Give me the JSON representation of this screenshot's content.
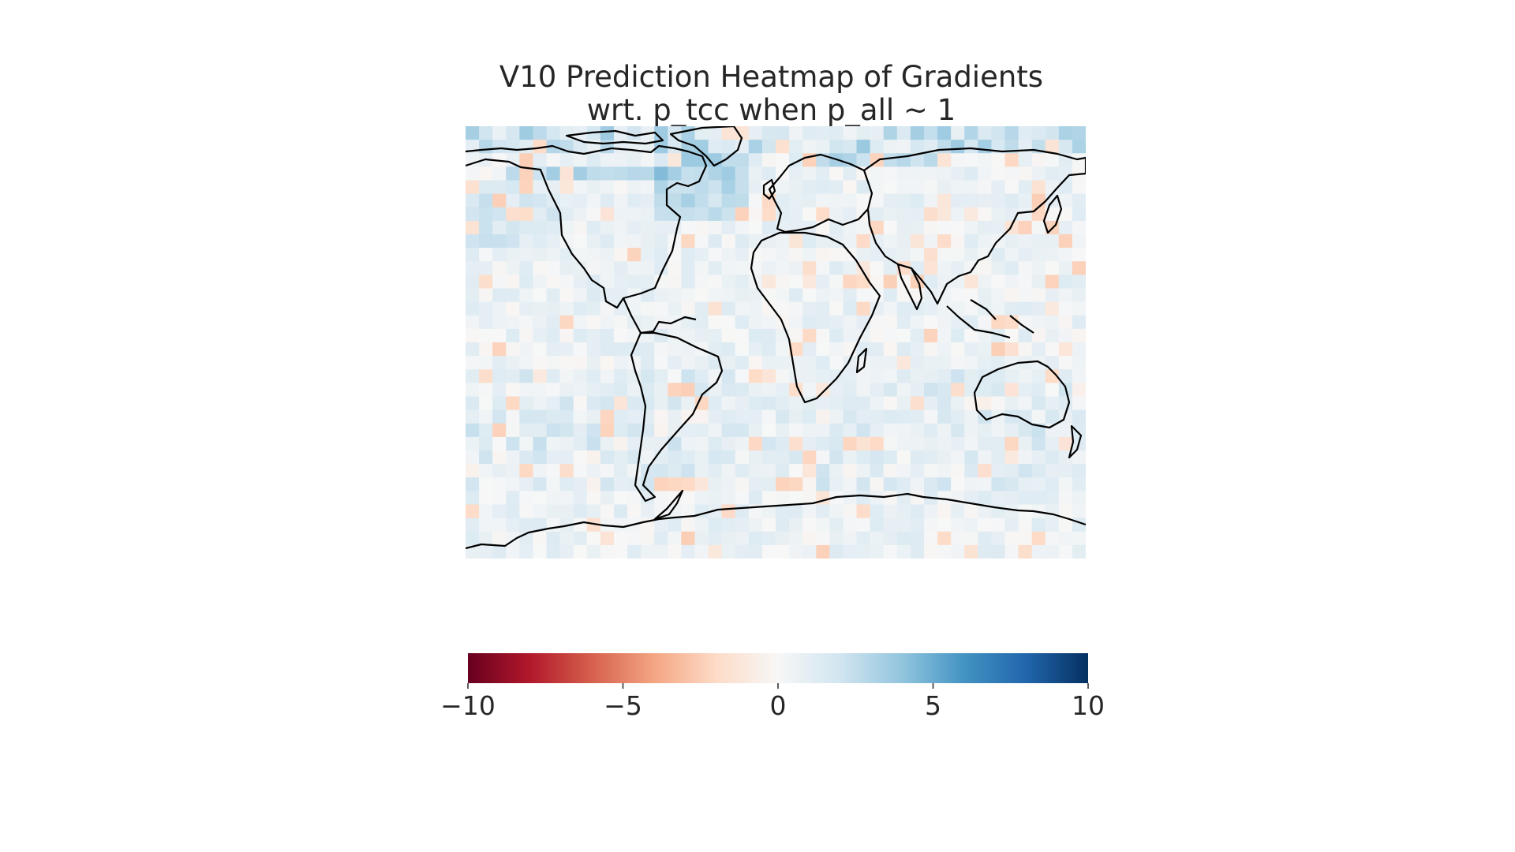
{
  "chart_data": {
    "type": "heatmap",
    "title": "V10 Prediction Heatmap of Gradients",
    "subtitle": "wrt. p_tcc when p_all ~ 1",
    "projection": "equirectangular world map with coastlines",
    "grid": {
      "rows": 32,
      "cols": 46
    },
    "colormap": "RdBu",
    "vmin": -10,
    "vmax": 10,
    "colorbar": {
      "orientation": "horizontal",
      "placement": "bottom",
      "ticks": [
        -10,
        -5,
        0,
        5,
        10
      ],
      "tick_labels": [
        "−10",
        "−5",
        "0",
        "5",
        "10"
      ]
    },
    "notes_visible": "Values mostly near 0 (white/light blue); stronger blue (~3-5) in northern high latitudes and North Atlantic; scattered light red (~-1 to -2) patches.",
    "colors": {
      "cmap_stops": [
        "#67001f",
        "#b2182b",
        "#d6604d",
        "#f4a582",
        "#fddbc7",
        "#f7f7f7",
        "#d1e5f0",
        "#92c5de",
        "#4393c3",
        "#2166ac",
        "#053061"
      ],
      "coastline": "#000000",
      "text": "#262626"
    }
  }
}
